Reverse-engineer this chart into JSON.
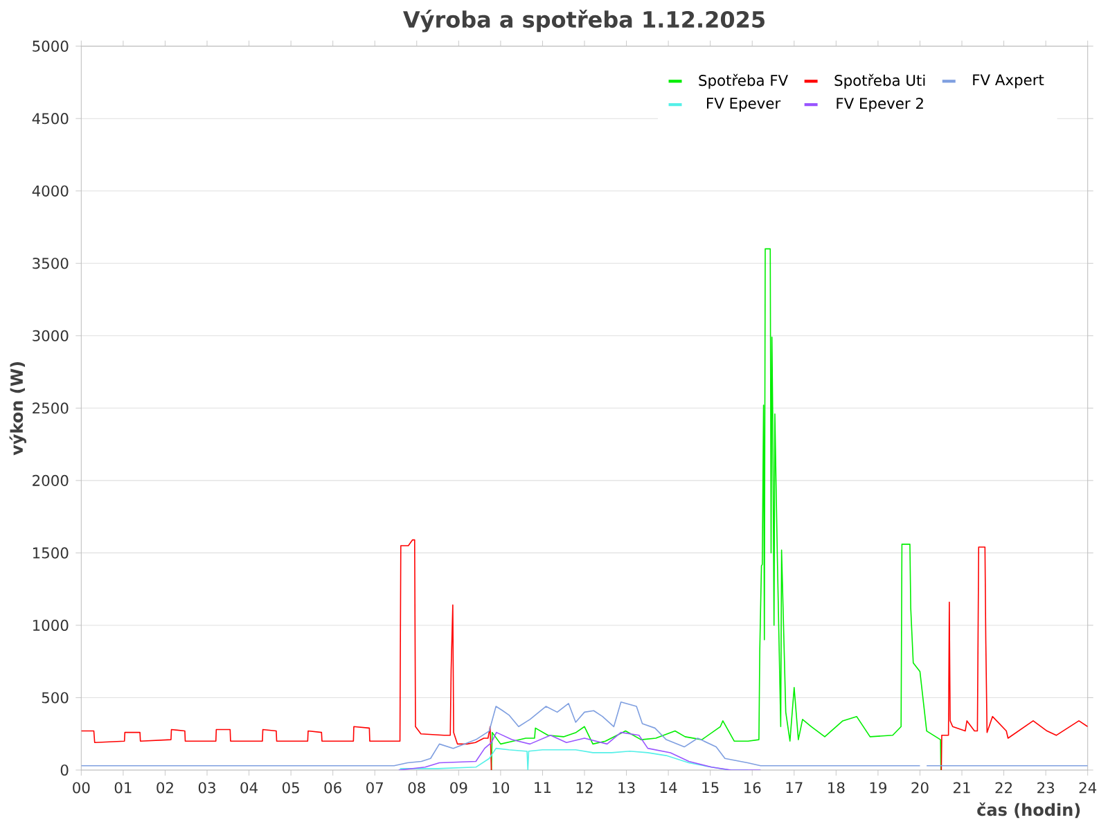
{
  "chart_data": {
    "type": "line",
    "title": "Výroba a spotřeba 1.12.2025",
    "xlabel": "čas (hodin)",
    "ylabel": "výkon (W)",
    "xlim": [
      0,
      24
    ],
    "ylim": [
      0,
      5000
    ],
    "xticks": [
      {
        "value": 0,
        "label": "00"
      },
      {
        "value": 1,
        "label": "01"
      },
      {
        "value": 2,
        "label": "02"
      },
      {
        "value": 3,
        "label": "03"
      },
      {
        "value": 4,
        "label": "04"
      },
      {
        "value": 5,
        "label": "05"
      },
      {
        "value": 6,
        "label": "06"
      },
      {
        "value": 7,
        "label": "07"
      },
      {
        "value": 8,
        "label": "08"
      },
      {
        "value": 9,
        "label": "09"
      },
      {
        "value": 10,
        "label": "10"
      },
      {
        "value": 11,
        "label": "11"
      },
      {
        "value": 12,
        "label": "12"
      },
      {
        "value": 13,
        "label": "13"
      },
      {
        "value": 14,
        "label": "14"
      },
      {
        "value": 15,
        "label": "15"
      },
      {
        "value": 16,
        "label": "16"
      },
      {
        "value": 17,
        "label": "17"
      },
      {
        "value": 18,
        "label": "18"
      },
      {
        "value": 19,
        "label": "19"
      },
      {
        "value": 20,
        "label": "20"
      },
      {
        "value": 21,
        "label": "21"
      },
      {
        "value": 22,
        "label": "22"
      },
      {
        "value": 23,
        "label": "23"
      },
      {
        "value": 24,
        "label": "24"
      }
    ],
    "yticks": [
      0,
      500,
      1000,
      1500,
      2000,
      2500,
      3000,
      3500,
      4000,
      4500,
      5000
    ],
    "grid": "y",
    "legend": "top right",
    "series": [
      {
        "name": "Spotřeba FV",
        "color": "#00ee00",
        "x": [
          9.78,
          9.8,
          10.0,
          10.3,
          10.6,
          10.81,
          10.83,
          11.13,
          11.5,
          11.8,
          12.0,
          12.2,
          12.5,
          12.98,
          13.35,
          13.7,
          14.16,
          14.4,
          14.8,
          15.24,
          15.3,
          15.57,
          15.9,
          16.16,
          16.18,
          16.22,
          16.24,
          16.27,
          16.29,
          16.31,
          16.33,
          16.43,
          16.45,
          16.47,
          16.49,
          16.52,
          16.54,
          16.6,
          16.68,
          16.7,
          16.72,
          16.8,
          16.9,
          17.0,
          17.1,
          17.2,
          17.41,
          17.73,
          18.16,
          18.49,
          18.81,
          19.35,
          19.55,
          19.57,
          19.76,
          19.78,
          19.84,
          20.0,
          20.16,
          20.49,
          20.5
        ],
        "values": [
          0,
          260,
          180,
          200,
          220,
          220,
          290,
          240,
          230,
          260,
          300,
          180,
          200,
          270,
          210,
          220,
          270,
          230,
          210,
          300,
          340,
          200,
          200,
          210,
          820,
          1410,
          1420,
          2520,
          900,
          3600,
          3600,
          3600,
          1500,
          2990,
          2430,
          1000,
          2460,
          1460,
          300,
          1520,
          1300,
          400,
          200,
          570,
          210,
          350,
          300,
          230,
          340,
          370,
          230,
          240,
          300,
          1560,
          1560,
          1120,
          740,
          680,
          270,
          210,
          0
        ]
      },
      {
        "name": "Spotřeba Uti",
        "color": "#ff0000",
        "x": [
          0,
          0.3,
          0.32,
          1.03,
          1.04,
          1.4,
          1.41,
          2.14,
          2.15,
          2.47,
          2.48,
          3.21,
          3.22,
          3.55,
          3.56,
          4.32,
          4.33,
          4.65,
          4.66,
          5.4,
          5.41,
          5.73,
          5.74,
          6.49,
          6.5,
          6.87,
          6.88,
          7.6,
          7.62,
          7.8,
          7.9,
          7.95,
          7.97,
          8.1,
          8.65,
          8.8,
          8.82,
          8.86,
          8.88,
          8.97,
          9.2,
          9.4,
          9.6,
          9.7,
          9.75,
          9.78,
          15,
          20.51,
          20.52,
          20.68,
          20.7,
          20.72,
          20.78,
          21.08,
          21.12,
          21.3,
          21.37,
          21.4,
          21.55,
          21.57,
          21.6,
          21.73,
          22.06,
          22.1,
          22.7,
          23.03,
          23.25,
          23.79,
          24
        ],
        "values": [
          270,
          270,
          190,
          200,
          260,
          260,
          200,
          210,
          280,
          270,
          200,
          200,
          280,
          280,
          200,
          200,
          280,
          270,
          200,
          200,
          270,
          260,
          200,
          200,
          300,
          290,
          200,
          200,
          1550,
          1550,
          1590,
          1590,
          300,
          250,
          240,
          240,
          690,
          1140,
          260,
          180,
          180,
          190,
          220,
          220,
          300,
          0,
          null,
          0,
          240,
          240,
          1160,
          340,
          300,
          270,
          340,
          270,
          270,
          1540,
          1540,
          900,
          260,
          370,
          270,
          220,
          340,
          270,
          240,
          340,
          300
        ]
      },
      {
        "name": "FV Axpert",
        "color": "#7f9fe0",
        "x": [
          0,
          7.46,
          7.78,
          8.11,
          8.33,
          8.54,
          8.87,
          9.41,
          9.73,
          9.89,
          10.05,
          10.2,
          10.43,
          10.7,
          11.08,
          11.35,
          11.62,
          11.79,
          12.0,
          12.22,
          12.43,
          12.7,
          12.87,
          13.24,
          13.38,
          13.68,
          13.95,
          14.38,
          14.7,
          15.14,
          15.35,
          15.89,
          16.2,
          20.0,
          20.08,
          20.16,
          24
        ],
        "values": [
          30,
          30,
          50,
          60,
          80,
          180,
          150,
          210,
          270,
          440,
          410,
          380,
          300,
          350,
          440,
          400,
          460,
          330,
          400,
          410,
          370,
          300,
          470,
          440,
          320,
          290,
          210,
          160,
          220,
          160,
          80,
          50,
          30,
          30,
          null,
          30,
          30
        ]
      },
      {
        "name": "FV Epever",
        "color": "#55f0e8",
        "x": [
          7.6,
          8.0,
          8.5,
          9.41,
          9.73,
          9.89,
          10.2,
          10.6,
          10.63,
          10.65,
          10.67,
          11.0,
          11.79,
          12.2,
          12.65,
          13.08,
          13.51,
          13.95,
          14.49,
          15.03,
          15.46,
          15.9
        ],
        "values": [
          10,
          10,
          10,
          20,
          80,
          150,
          140,
          130,
          130,
          0,
          130,
          140,
          140,
          120,
          120,
          130,
          120,
          100,
          50,
          20,
          0,
          0
        ]
      },
      {
        "name": "FV Epever 2",
        "color": "#9955ff",
        "x": [
          7.57,
          8.2,
          8.54,
          9.41,
          9.62,
          9.78,
          9.9,
          10.27,
          10.7,
          11.19,
          11.57,
          12.0,
          12.54,
          12.87,
          13.3,
          13.51,
          14.05,
          14.49,
          15.03,
          15.5,
          16.2
        ],
        "values": [
          0,
          20,
          50,
          60,
          150,
          190,
          260,
          210,
          180,
          240,
          190,
          220,
          180,
          260,
          240,
          150,
          120,
          60,
          20,
          0,
          0
        ]
      }
    ]
  }
}
